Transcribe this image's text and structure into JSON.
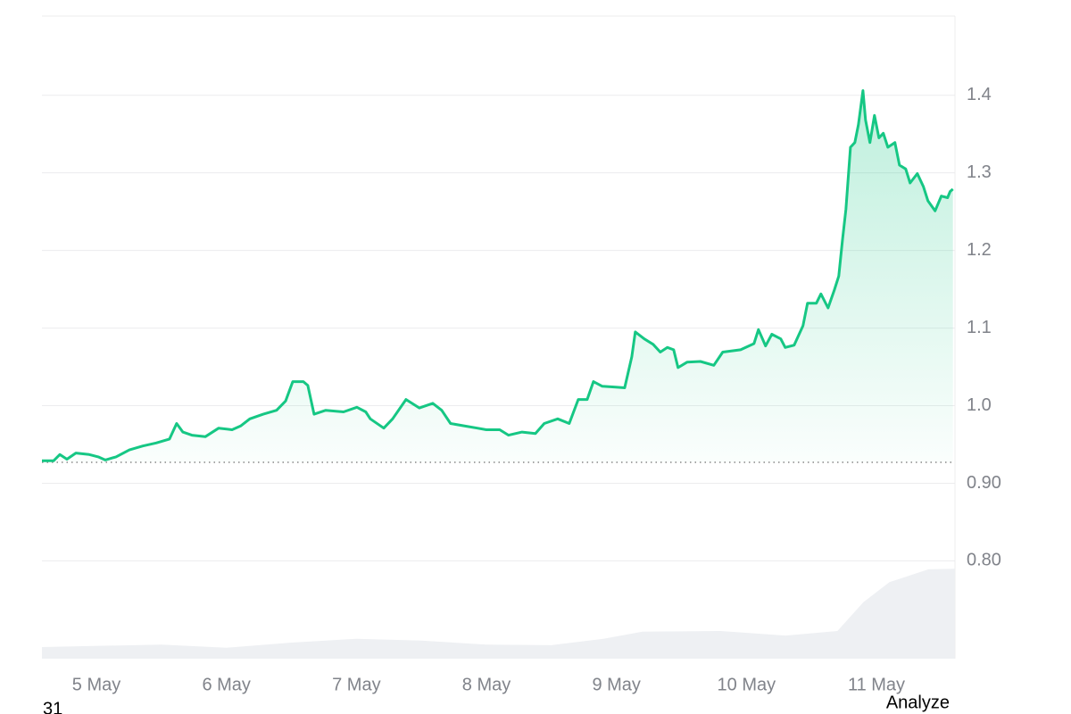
{
  "chart_data": {
    "type": "line",
    "x": [
      4.581,
      4.67,
      4.718,
      4.773,
      4.842,
      4.945,
      5.014,
      5.068,
      5.151,
      5.254,
      5.357,
      5.46,
      5.562,
      5.617,
      5.665,
      5.734,
      5.837,
      5.94,
      6.043,
      6.111,
      6.18,
      6.283,
      6.386,
      6.455,
      6.51,
      6.592,
      6.626,
      6.674,
      6.764,
      6.901,
      7.004,
      7.072,
      7.107,
      7.21,
      7.278,
      7.381,
      7.484,
      7.587,
      7.656,
      7.724,
      7.827,
      7.93,
      7.999,
      8.102,
      8.17,
      8.274,
      8.377,
      8.445,
      8.548,
      8.637,
      8.706,
      8.775,
      8.823,
      8.891,
      8.994,
      9.063,
      9.118,
      9.145,
      9.214,
      9.282,
      9.337,
      9.392,
      9.44,
      9.474,
      9.543,
      9.646,
      9.749,
      9.818,
      9.955,
      10.058,
      10.092,
      10.147,
      10.195,
      10.264,
      10.298,
      10.367,
      10.435,
      10.47,
      10.538,
      10.573,
      10.628,
      10.676,
      10.71,
      10.738,
      10.765,
      10.8,
      10.834,
      10.861,
      10.896,
      10.916,
      10.95,
      10.985,
      11.019,
      11.053,
      11.088,
      11.142,
      11.177,
      11.225,
      11.259,
      11.314,
      11.362,
      11.396,
      11.451,
      11.499,
      11.547,
      11.567,
      11.588
    ],
    "series": [
      {
        "color": "#16c784",
        "values": [
          0.929,
          0.929,
          0.937,
          0.931,
          0.939,
          0.937,
          0.934,
          0.93,
          0.934,
          0.943,
          0.948,
          0.952,
          0.957,
          0.977,
          0.966,
          0.962,
          0.96,
          0.971,
          0.969,
          0.974,
          0.983,
          0.989,
          0.994,
          1.006,
          1.031,
          1.031,
          1.026,
          0.989,
          0.994,
          0.992,
          0.998,
          0.992,
          0.983,
          0.971,
          0.983,
          1.008,
          0.997,
          1.003,
          0.994,
          0.977,
          0.974,
          0.971,
          0.969,
          0.969,
          0.962,
          0.966,
          0.964,
          0.977,
          0.983,
          0.977,
          1.008,
          1.008,
          1.031,
          1.025,
          1.024,
          1.023,
          1.063,
          1.095,
          1.086,
          1.079,
          1.069,
          1.075,
          1.072,
          1.049,
          1.056,
          1.057,
          1.052,
          1.069,
          1.072,
          1.08,
          1.098,
          1.077,
          1.092,
          1.086,
          1.075,
          1.078,
          1.103,
          1.132,
          1.132,
          1.144,
          1.126,
          1.149,
          1.167,
          1.213,
          1.253,
          1.333,
          1.339,
          1.362,
          1.406,
          1.368,
          1.339,
          1.374,
          1.345,
          1.351,
          1.333,
          1.339,
          1.31,
          1.305,
          1.287,
          1.299,
          1.282,
          1.264,
          1.251,
          1.27,
          1.268,
          1.276,
          1.279
        ]
      }
    ],
    "below_color": "#ea3943",
    "baseline": 0.927,
    "volume": {
      "color": "#eef0f3",
      "x": [
        4.581,
        5.5,
        6.0,
        6.5,
        7.0,
        7.5,
        8.0,
        8.5,
        8.9,
        9.2,
        9.8,
        10.3,
        10.7,
        10.9,
        11.1,
        11.4,
        11.6
      ],
      "values": [
        1.8,
        2.2,
        1.7,
        2.5,
        3.1,
        2.8,
        2.2,
        2.1,
        3.1,
        4.2,
        4.3,
        3.6,
        4.3,
        8.8,
        11.9,
        13.9,
        14.0
      ]
    },
    "y2lim": [
      0,
      100
    ],
    "xlim": [
      4.581,
      11.604
    ],
    "xticks": [
      {
        "value": 5,
        "label": "5 May"
      },
      {
        "value": 6,
        "label": "6 May"
      },
      {
        "value": 7,
        "label": "7 May"
      },
      {
        "value": 8,
        "label": "8 May"
      },
      {
        "value": 9,
        "label": "9 May"
      },
      {
        "value": 10,
        "label": "10 May"
      },
      {
        "value": 11,
        "label": "11 May"
      }
    ],
    "ylim": [
      0.674,
      1.502
    ],
    "yticks": [
      {
        "value": 0.8,
        "label": "0.80"
      },
      {
        "value": 0.9,
        "label": "0.90"
      },
      {
        "value": 1,
        "label": "1.0"
      },
      1.1,
      1.2,
      1.3,
      1.4
    ],
    "grid": true
  },
  "footer": {
    "left": "31",
    "right": "Analyze"
  }
}
